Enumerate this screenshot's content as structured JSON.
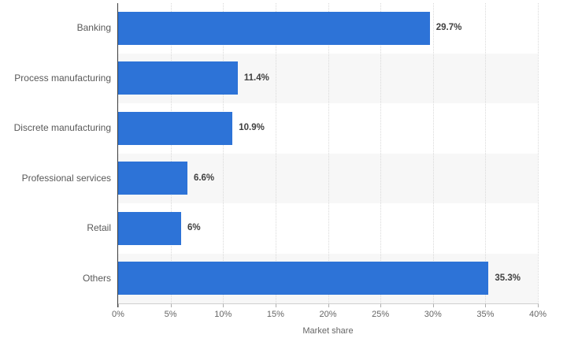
{
  "chart": {
    "colors": {
      "bar": "#2d73d7",
      "band": "#f7f7f7",
      "grid": "#d9d9d9",
      "axis": "#3c3c3c",
      "axis_bottom": "#cfcfcf",
      "label": "#595959",
      "value_label": "#404040",
      "tick_label": "#666666"
    }
  },
  "chart_data": {
    "type": "bar",
    "orientation": "horizontal",
    "title": "",
    "xlabel": "Market share",
    "ylabel": "",
    "categories": [
      "Banking",
      "Process manufacturing",
      "Discrete manufacturing",
      "Professional services",
      "Retail",
      "Others"
    ],
    "values": [
      29.7,
      11.4,
      10.9,
      6.6,
      6,
      35.3
    ],
    "value_labels": [
      "29.7%",
      "11.4%",
      "10.9%",
      "6.6%",
      "6%",
      "35.3%"
    ],
    "xlim": [
      0,
      40
    ],
    "xtick_step": 5,
    "xticks": [
      "0%",
      "5%",
      "10%",
      "15%",
      "20%",
      "25%",
      "30%",
      "35%",
      "40%"
    ],
    "grid": "vertical-dotted",
    "row_bands": "alternating",
    "legend": "none"
  }
}
